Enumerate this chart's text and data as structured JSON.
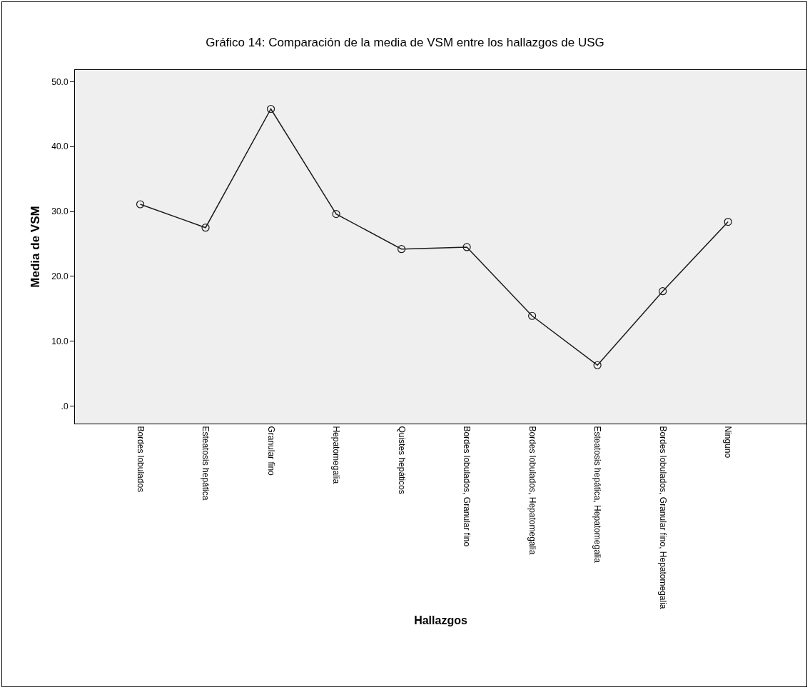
{
  "chart_data": {
    "type": "line",
    "title": "Gráfico 14: Comparación de la media de VSM entre los hallazgos de USG",
    "xlabel": "Hallazgos",
    "ylabel": "Media de VSM",
    "categories": [
      "Bordes lobulados",
      "Esteatosis hepática",
      "Granular fino",
      "Hepatomegalia",
      "Quistes hepáticos",
      "Bordes lobulados, Granular fino",
      "Bordes lobulados, Hepatomegalia",
      "Esteatosis hepática, Hepatomegalia",
      "Bordes lobulados, Granular fino, Hepatomegalia",
      "Ninguno"
    ],
    "series": [
      {
        "color": "#1a1a1a",
        "values": [
          31.1,
          27.5,
          45.8,
          29.6,
          24.2,
          24.5,
          13.9,
          6.3,
          17.7,
          28.4
        ]
      }
    ],
    "ylim": [
      -2.7,
      51.8
    ],
    "yticks": [
      {
        "value": 0,
        "label": ".0"
      },
      {
        "value": 10,
        "label": "10.0"
      },
      {
        "value": 20,
        "label": "20.0"
      },
      {
        "value": 30,
        "label": "30.0"
      },
      {
        "value": 40,
        "label": "40.0"
      },
      {
        "value": 50,
        "label": "50.0"
      }
    ],
    "grid": false,
    "marker": "circle",
    "line_style": "solid"
  }
}
